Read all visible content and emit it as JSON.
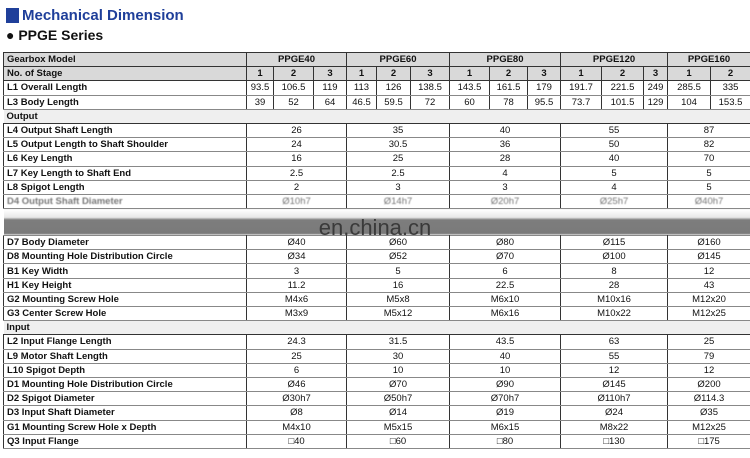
{
  "title": "Mechanical Dimension",
  "series": "● PPGE Series",
  "watermark": "en.china.cn",
  "header": {
    "label": "Gearbox Model",
    "models": [
      {
        "name": "PPGE40",
        "stages": [
          "1",
          "2",
          "3"
        ]
      },
      {
        "name": "PPGE60",
        "stages": [
          "1",
          "2",
          "3"
        ]
      },
      {
        "name": "PPGE80",
        "stages": [
          "1",
          "2",
          "3"
        ]
      },
      {
        "name": "PPGE120",
        "stages": [
          "1",
          "2",
          "3"
        ]
      },
      {
        "name": "PPGE160",
        "stages": [
          "1",
          "2"
        ]
      }
    ],
    "stage_label": "No. of Stage"
  },
  "stage_rows": [
    {
      "label": "L1 Overall Length",
      "values": [
        "93.5",
        "106.5",
        "119",
        "113",
        "126",
        "138.5",
        "143.5",
        "161.5",
        "179",
        "191.7",
        "221.5",
        "249",
        "285.5",
        "335"
      ]
    },
    {
      "label": "L3 Body Length",
      "values": [
        "39",
        "52",
        "64",
        "46.5",
        "59.5",
        "72",
        "60",
        "78",
        "95.5",
        "73.7",
        "101.5",
        "129",
        "104",
        "153.5"
      ]
    }
  ],
  "output_label": "Output",
  "output_rows": [
    {
      "label": "L4 Output Shaft Length",
      "values": [
        "26",
        "35",
        "40",
        "55",
        "87"
      ]
    },
    {
      "label": "L5 Output Length to Shaft Shoulder",
      "values": [
        "24",
        "30.5",
        "36",
        "50",
        "82"
      ]
    },
    {
      "label": "L6 Key Length",
      "values": [
        "16",
        "25",
        "28",
        "40",
        "70"
      ]
    },
    {
      "label": "L7 Key Length to Shaft End",
      "values": [
        "2.5",
        "2.5",
        "4",
        "5",
        "5"
      ]
    },
    {
      "label": "L8 Spigot Length",
      "values": [
        "2",
        "3",
        "3",
        "4",
        "5"
      ]
    },
    {
      "label": "D4 Output Shaft Diameter",
      "values": [
        "Ø10h7",
        "Ø14h7",
        "Ø20h7",
        "Ø25h7",
        "Ø40h7"
      ],
      "obscured": true
    },
    {
      "gap": true
    },
    {
      "label": "D7 Body Diameter",
      "values": [
        "Ø40",
        "Ø60",
        "Ø80",
        "Ø115",
        "Ø160"
      ]
    },
    {
      "label": "D8 Mounting Hole Distribution Circle",
      "values": [
        "Ø34",
        "Ø52",
        "Ø70",
        "Ø100",
        "Ø145"
      ]
    },
    {
      "label": "B1 Key Width",
      "values": [
        "3",
        "5",
        "6",
        "8",
        "12"
      ]
    },
    {
      "label": "H1 Key Height",
      "values": [
        "11.2",
        "16",
        "22.5",
        "28",
        "43"
      ]
    },
    {
      "label": "G2 Mounting Screw Hole",
      "values": [
        "M4x6",
        "M5x8",
        "M6x10",
        "M10x16",
        "M12x20"
      ]
    },
    {
      "label": "G3 Center Screw Hole",
      "values": [
        "M3x9",
        "M5x12",
        "M6x16",
        "M10x22",
        "M12x25"
      ]
    }
  ],
  "input_label": "Input",
  "input_rows": [
    {
      "label": "L2 Input Flange Length",
      "values": [
        "24.3",
        "31.5",
        "43.5",
        "63",
        "25"
      ]
    },
    {
      "label": "L9 Motor Shaft Length",
      "values": [
        "25",
        "30",
        "40",
        "55",
        "79"
      ]
    },
    {
      "label": "L10 Spigot Depth",
      "values": [
        "6",
        "10",
        "10",
        "12",
        "12"
      ]
    },
    {
      "label": "D1 Mounting Hole Distribution Circle",
      "values": [
        "Ø46",
        "Ø70",
        "Ø90",
        "Ø145",
        "Ø200"
      ]
    },
    {
      "label": "D2 Spigot Diameter",
      "values": [
        "Ø30h7",
        "Ø50h7",
        "Ø70h7",
        "Ø110h7",
        "Ø114.3"
      ]
    },
    {
      "label": "D3 Input Shaft Diameter",
      "values": [
        "Ø8",
        "Ø14",
        "Ø19",
        "Ø24",
        "Ø35"
      ]
    },
    {
      "label": "G1 Mounting Screw Hole x Depth",
      "values": [
        "M4x10",
        "M5x15",
        "M6x15",
        "M8x22",
        "M12x25"
      ]
    },
    {
      "label": "Q3 Input Flange",
      "values": [
        "□40",
        "□60",
        "□80",
        "□130",
        "□175"
      ]
    }
  ]
}
